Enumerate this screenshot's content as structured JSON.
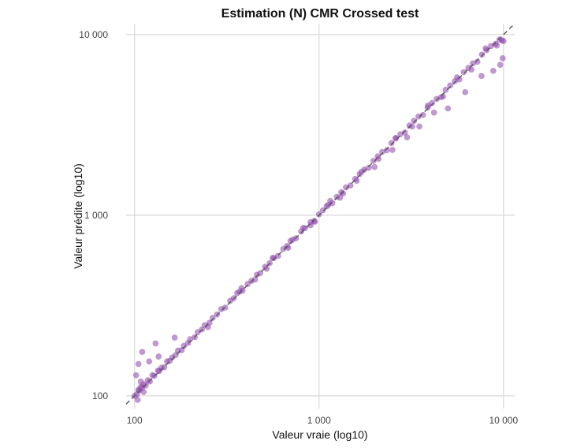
{
  "chart_data": {
    "type": "scatter",
    "title": "Estimation (N) CMR Crossed test",
    "xlabel": "Valeur vraie (log10)",
    "ylabel": "Valeur prédite (log10)",
    "x_scale": "log10",
    "y_scale": "log10",
    "xlim": [
      90,
      11500
    ],
    "ylim": [
      85,
      11500
    ],
    "x_ticks": [
      100,
      1000,
      10000
    ],
    "x_tick_labels": [
      "100",
      "1 000",
      "10 000"
    ],
    "y_ticks": [
      100,
      1000,
      10000
    ],
    "y_tick_labels": [
      "100",
      "1 000",
      "10 000"
    ],
    "grid": true,
    "reference_line": {
      "style": "dashed",
      "slope": 1,
      "intercept": 0,
      "color": "#555555"
    },
    "point_color": "#8e44ad",
    "point_opacity": 0.55,
    "series": [
      {
        "x": [
          100,
          103,
          106,
          110,
          115,
          121,
          128,
          136,
          145,
          155,
          167,
          180,
          195,
          212,
          232,
          255,
          280,
          310,
          345,
          385,
          430,
          480,
          540,
          600,
          670,
          750,
          840,
          940,
          1050,
          1180,
          1320,
          1480,
          1660,
          1860,
          2080,
          2330,
          2610,
          2920,
          3270,
          3660,
          4100,
          4590,
          5140,
          5760,
          6450,
          7220,
          8090,
          9060,
          10000,
          105,
          108,
          112,
          118,
          125,
          134,
          140,
          150,
          160,
          172,
          185,
          200,
          220,
          240,
          265,
          295,
          330,
          370,
          410,
          460,
          510,
          570,
          640,
          720,
          800,
          900,
          1000,
          1120,
          1250,
          1400,
          1570,
          1760,
          1970,
          2200,
          2470,
          2760,
          3090,
          3460,
          3880,
          4340,
          4860,
          5440,
          6090,
          6820,
          7640,
          8560,
          9500,
          102,
          105,
          110,
          104,
          108,
          120,
          135,
          165,
          130,
          112,
          250,
          380,
          520,
          700,
          900,
          1100,
          1350,
          1700,
          2100,
          2600,
          3200,
          3900,
          4700,
          5600,
          6700,
          8000,
          9200,
          9800,
          9600,
          9900,
          8800,
          7600,
          6200,
          5000,
          4200,
          3500,
          3000,
          2500,
          2000,
          1600,
          1300,
          1150,
          950,
          820,
          680,
          560,
          450,
          360
        ],
        "y": [
          100,
          102,
          107,
          111,
          114,
          120,
          129,
          137,
          144,
          156,
          168,
          179,
          196,
          211,
          233,
          254,
          282,
          308,
          347,
          382,
          433,
          478,
          543,
          596,
          675,
          745,
          848,
          930,
          1065,
          1165,
          1340,
          1460,
          1690,
          1830,
          2120,
          2290,
          2660,
          2870,
          3330,
          3590,
          4180,
          4500,
          5230,
          5650,
          6550,
          7080,
          8200,
          8900,
          9200,
          108,
          112,
          116,
          122,
          130,
          138,
          143,
          155,
          163,
          178,
          189,
          206,
          225,
          246,
          270,
          302,
          336,
          377,
          416,
          468,
          518,
          580,
          650,
          733,
          812,
          915,
          1012,
          1140,
          1265,
          1425,
          1590,
          1790,
          2000,
          2240,
          2510,
          2810,
          3140,
          3520,
          3950,
          4400,
          4950,
          5520,
          6200,
          6930,
          7750,
          8650,
          9400,
          130,
          150,
          175,
          95,
          120,
          155,
          165,
          210,
          195,
          105,
          240,
          395,
          505,
          720,
          880,
          1120,
          1320,
          1740,
          2050,
          2680,
          3100,
          4050,
          4550,
          5800,
          6400,
          8400,
          8700,
          9300,
          6800,
          7400,
          6300,
          5900,
          4800,
          3900,
          3700,
          3100,
          2700,
          2300,
          1850,
          1550,
          1250,
          1200,
          920,
          850,
          660,
          580,
          440,
          370
        ]
      }
    ]
  }
}
